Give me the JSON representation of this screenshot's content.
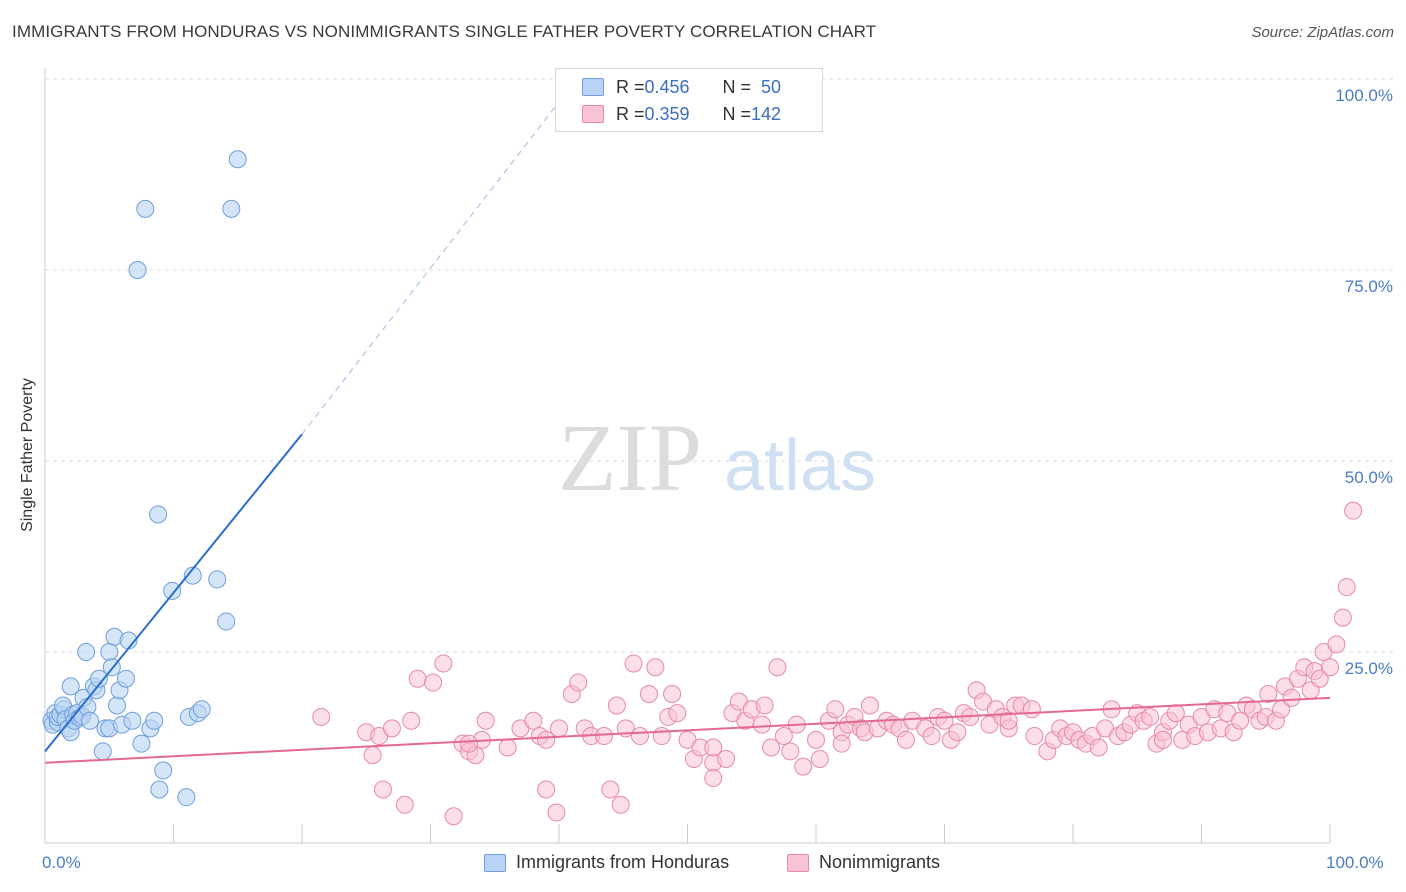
{
  "title": "IMMIGRANTS FROM HONDURAS VS NONIMMIGRANTS SINGLE FATHER POVERTY CORRELATION CHART",
  "source": "Source: ZipAtlas.com",
  "watermark": {
    "zip": "ZIP",
    "atlas": "atlas"
  },
  "legend": {
    "series1": {
      "r_label": "R = ",
      "r_value": "0.456",
      "n_label": "N = ",
      "n_value": "50"
    },
    "series2": {
      "r_label": "R = ",
      "r_value": "0.359",
      "n_label": "N = ",
      "n_value": "142"
    }
  },
  "colors": {
    "blue_fill": "#b8d3f3",
    "blue_stroke": "#6f9fdc",
    "blue_line": "#2a6fd0",
    "pink_fill": "#f8c3d3",
    "pink_stroke": "#e88aa8",
    "pink_line": "#e4698f",
    "tick_text": "#4a7cc7",
    "grid": "#dddddd"
  },
  "chart_data": {
    "type": "scatter",
    "title": "IMMIGRANTS FROM HONDURAS VS NONIMMIGRANTS SINGLE FATHER POVERTY CORRELATION CHART",
    "xlabel": "",
    "ylabel": "Single Father Poverty",
    "xlim": [
      0,
      100
    ],
    "ylim": [
      0,
      100
    ],
    "x_tick_labels": [
      "0.0%",
      "100.0%"
    ],
    "y_tick_labels": [
      "25.0%",
      "50.0%",
      "75.0%",
      "100.0%"
    ],
    "y_ticks": [
      25,
      50,
      75,
      100
    ],
    "grid": true,
    "legend_position": "top-center",
    "series": [
      {
        "name": "Immigrants from Honduras",
        "r": 0.456,
        "n": 50,
        "trend": {
          "x0": 0,
          "y0": 12,
          "x1": 20,
          "y1": 53.5,
          "dashed_to_x": 40,
          "dashed_to_y": 97
        },
        "points": [
          [
            0.5,
            16
          ],
          [
            0.6,
            15.5
          ],
          [
            0.8,
            17
          ],
          [
            1,
            15.8
          ],
          [
            1,
            16.5
          ],
          [
            1.2,
            16.8
          ],
          [
            1.5,
            17.5
          ],
          [
            1.4,
            18
          ],
          [
            1.6,
            16.2
          ],
          [
            1.8,
            15
          ],
          [
            2,
            14.5
          ],
          [
            2.2,
            16.8
          ],
          [
            2.3,
            16
          ],
          [
            2.5,
            17
          ],
          [
            2.7,
            16.4
          ],
          [
            2.9,
            16.6
          ],
          [
            2.0,
            20.5
          ],
          [
            3,
            19
          ],
          [
            3.3,
            17.8
          ],
          [
            3.5,
            16
          ],
          [
            3.2,
            25
          ],
          [
            3.8,
            20.5
          ],
          [
            4,
            20
          ],
          [
            4.2,
            21.5
          ],
          [
            4.5,
            12
          ],
          [
            4.7,
            15
          ],
          [
            5,
            15
          ],
          [
            5,
            25
          ],
          [
            5.2,
            23
          ],
          [
            5.4,
            27
          ],
          [
            5.6,
            18
          ],
          [
            5.8,
            20
          ],
          [
            6,
            15.5
          ],
          [
            6.3,
            21.5
          ],
          [
            6.5,
            26.5
          ],
          [
            6.8,
            16
          ],
          [
            7.2,
            75
          ],
          [
            7.5,
            13
          ],
          [
            7.8,
            83
          ],
          [
            8.2,
            15
          ],
          [
            8.5,
            16
          ],
          [
            8.8,
            43
          ],
          [
            8.9,
            7
          ],
          [
            9.2,
            9.5
          ],
          [
            9.9,
            33
          ],
          [
            11,
            6
          ],
          [
            11.2,
            16.5
          ],
          [
            11.5,
            35
          ],
          [
            11.9,
            17
          ],
          [
            12.2,
            17.5
          ],
          [
            13.4,
            34.5
          ],
          [
            14.1,
            29
          ],
          [
            14.5,
            83
          ],
          [
            15,
            89.5
          ]
        ]
      },
      {
        "name": "Nonimmigrants",
        "r": 0.359,
        "n": 142,
        "trend": {
          "x0": 0,
          "y0": 10.5,
          "x1": 100,
          "y1": 19
        },
        "points": [
          [
            21.5,
            16.5
          ],
          [
            25,
            14.5
          ],
          [
            25.5,
            11.5
          ],
          [
            26,
            14
          ],
          [
            26.3,
            7
          ],
          [
            27,
            15
          ],
          [
            28,
            5
          ],
          [
            28.5,
            16
          ],
          [
            29,
            21.5
          ],
          [
            30.2,
            21
          ],
          [
            31,
            23.5
          ],
          [
            31.8,
            3.5
          ],
          [
            32.5,
            13
          ],
          [
            33,
            12
          ],
          [
            33.5,
            11.5
          ],
          [
            34,
            13.5
          ],
          [
            34.3,
            16
          ],
          [
            36,
            12.5
          ],
          [
            37,
            15
          ],
          [
            38,
            16
          ],
          [
            38.5,
            14
          ],
          [
            39,
            7
          ],
          [
            39.8,
            4
          ],
          [
            40,
            15
          ],
          [
            41,
            19.5
          ],
          [
            41.5,
            21
          ],
          [
            42,
            15
          ],
          [
            42.5,
            14
          ],
          [
            43.5,
            14
          ],
          [
            44,
            7
          ],
          [
            44.5,
            18
          ],
          [
            44.8,
            5
          ],
          [
            45.2,
            15
          ],
          [
            45.8,
            23.5
          ],
          [
            46.3,
            14
          ],
          [
            47,
            19.5
          ],
          [
            47.5,
            23
          ],
          [
            48.5,
            16.5
          ],
          [
            48.8,
            19.5
          ],
          [
            49.2,
            17
          ],
          [
            50,
            13.5
          ],
          [
            50.5,
            11
          ],
          [
            51,
            12.5
          ],
          [
            52,
            10.5
          ],
          [
            52,
            8.5
          ],
          [
            53,
            11
          ],
          [
            53.5,
            17
          ],
          [
            54,
            18.5
          ],
          [
            54.5,
            16
          ],
          [
            55,
            17.5
          ],
          [
            55.8,
            15.5
          ],
          [
            56,
            18
          ],
          [
            56.5,
            12.5
          ],
          [
            57,
            23
          ],
          [
            57.5,
            14
          ],
          [
            58,
            12
          ],
          [
            58.5,
            15.5
          ],
          [
            59,
            10
          ],
          [
            60,
            13.5
          ],
          [
            60.3,
            11
          ],
          [
            61,
            16
          ],
          [
            61.5,
            17.5
          ],
          [
            62,
            14.5
          ],
          [
            62.5,
            15.5
          ],
          [
            63,
            16.5
          ],
          [
            63.5,
            15
          ],
          [
            63.8,
            14.5
          ],
          [
            64.2,
            18
          ],
          [
            64.8,
            15
          ],
          [
            65.5,
            16
          ],
          [
            66,
            15.5
          ],
          [
            66.5,
            15
          ],
          [
            67,
            13.5
          ],
          [
            67.5,
            16
          ],
          [
            68.5,
            15
          ],
          [
            69,
            14
          ],
          [
            69.5,
            16.5
          ],
          [
            70,
            16
          ],
          [
            70.5,
            13.5
          ],
          [
            71,
            14.5
          ],
          [
            71.5,
            17
          ],
          [
            72,
            16.5
          ],
          [
            72.5,
            20
          ],
          [
            73,
            18.5
          ],
          [
            73.5,
            15.5
          ],
          [
            74,
            17.5
          ],
          [
            74.5,
            16.5
          ],
          [
            75,
            15
          ],
          [
            75.5,
            18
          ],
          [
            76,
            18
          ],
          [
            76.8,
            17.5
          ],
          [
            77,
            14
          ],
          [
            78,
            12
          ],
          [
            78.5,
            13.5
          ],
          [
            79,
            15
          ],
          [
            79.5,
            14
          ],
          [
            80,
            14.5
          ],
          [
            80.5,
            13.5
          ],
          [
            81,
            13
          ],
          [
            81.5,
            14
          ],
          [
            82,
            12.5
          ],
          [
            82.5,
            15
          ],
          [
            83,
            17.5
          ],
          [
            83.5,
            14
          ],
          [
            84,
            14.5
          ],
          [
            84.5,
            15.5
          ],
          [
            85,
            17
          ],
          [
            85.5,
            16
          ],
          [
            86,
            16.5
          ],
          [
            86.5,
            13
          ],
          [
            87,
            14.5
          ],
          [
            87.5,
            16
          ],
          [
            88,
            17
          ],
          [
            88.5,
            13.5
          ],
          [
            89,
            15.5
          ],
          [
            89.5,
            14
          ],
          [
            90,
            16.5
          ],
          [
            90.5,
            14.5
          ],
          [
            91,
            17.5
          ],
          [
            91.5,
            15
          ],
          [
            92,
            17
          ],
          [
            92.5,
            14.5
          ],
          [
            93,
            16
          ],
          [
            93.5,
            18
          ],
          [
            94,
            17.5
          ],
          [
            94.5,
            16
          ],
          [
            95,
            16.5
          ],
          [
            95.2,
            19.5
          ],
          [
            95.8,
            16
          ],
          [
            96.2,
            17.5
          ],
          [
            96.5,
            20.5
          ],
          [
            97,
            19
          ],
          [
            97.5,
            21.5
          ],
          [
            98,
            23
          ],
          [
            98.5,
            20
          ],
          [
            98.8,
            22.5
          ],
          [
            99.2,
            21.5
          ],
          [
            99.5,
            25
          ],
          [
            100,
            23
          ],
          [
            100.5,
            26
          ],
          [
            101,
            29.5
          ],
          [
            101.3,
            33.5
          ],
          [
            101.8,
            43.5
          ],
          [
            87,
            13.5
          ],
          [
            75,
            16
          ],
          [
            62,
            13
          ],
          [
            52,
            12.5
          ],
          [
            48,
            14
          ],
          [
            39,
            13.5
          ],
          [
            33,
            13
          ]
        ]
      }
    ]
  },
  "bottom_legend": {
    "series1": "Immigrants from Honduras",
    "series2": "Nonimmigrants"
  }
}
